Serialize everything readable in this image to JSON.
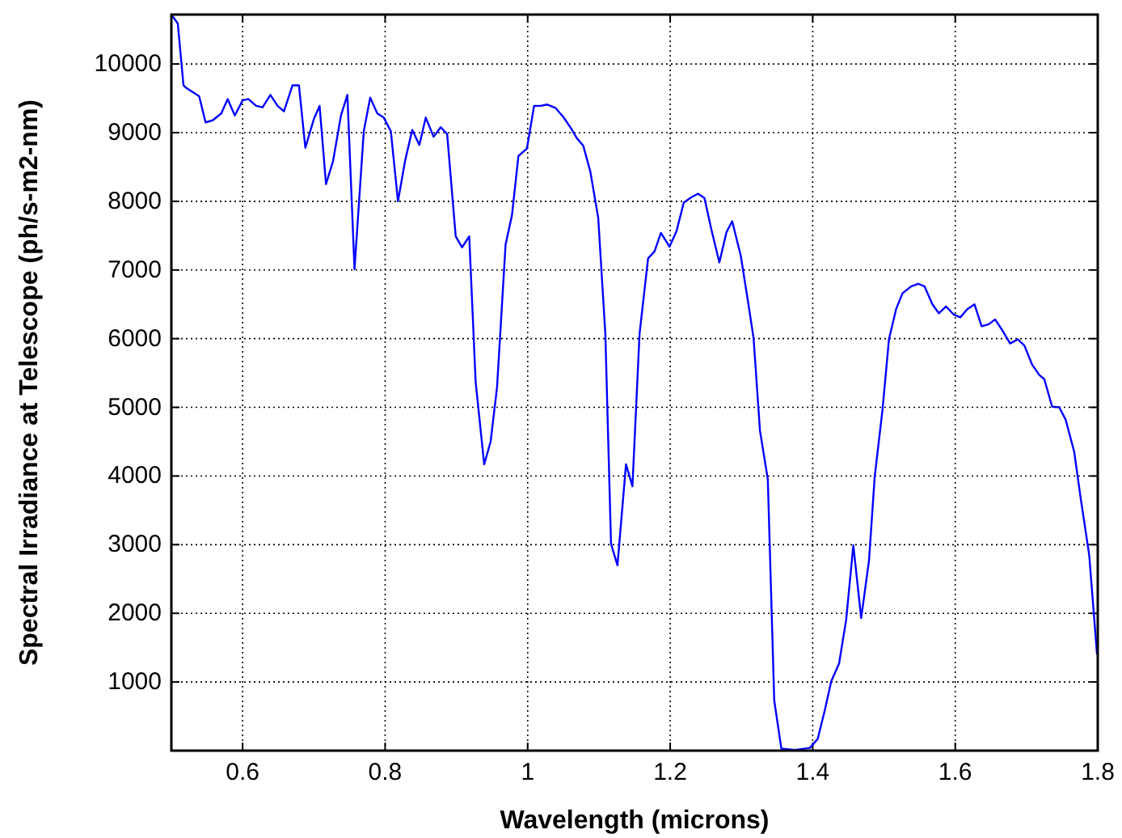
{
  "chart_data": {
    "type": "line",
    "xlabel": "Wavelength (microns)",
    "ylabel": "Spectral Irradiance at Telescope (ph/s-m2-nm)",
    "xlim": [
      0.5,
      1.8
    ],
    "ylim": [
      0,
      10720
    ],
    "xticks": [
      0.6,
      0.8,
      1,
      1.2,
      1.4,
      1.6,
      1.8
    ],
    "yticks": [
      1000,
      2000,
      3000,
      4000,
      5000,
      6000,
      7000,
      8000,
      9000,
      10000
    ],
    "grid": true,
    "line_style": "solid",
    "series": [
      {
        "color": "#0000ff",
        "x": [
          0.5,
          0.509,
          0.517,
          0.521,
          0.539,
          0.548,
          0.558,
          0.57,
          0.579,
          0.589,
          0.6,
          0.608,
          0.619,
          0.628,
          0.639,
          0.649,
          0.658,
          0.67,
          0.679,
          0.688,
          0.7,
          0.708,
          0.717,
          0.727,
          0.738,
          0.747,
          0.757,
          0.77,
          0.779,
          0.789,
          0.798,
          0.808,
          0.818,
          0.828,
          0.838,
          0.848,
          0.857,
          0.868,
          0.878,
          0.887,
          0.899,
          0.908,
          0.918,
          0.927,
          0.939,
          0.948,
          0.957,
          0.969,
          0.978,
          0.987,
          0.999,
          1.009,
          1.018,
          1.027,
          1.039,
          1.05,
          1.061,
          1.069,
          1.078,
          1.088,
          1.099,
          1.109,
          1.117,
          1.126,
          1.138,
          1.147,
          1.157,
          1.169,
          1.178,
          1.187,
          1.199,
          1.209,
          1.219,
          1.23,
          1.239,
          1.248,
          1.258,
          1.269,
          1.279,
          1.287,
          1.299,
          1.308,
          1.317,
          1.326,
          1.337,
          1.346,
          1.356,
          1.375,
          1.396,
          1.407,
          1.417,
          1.426,
          1.437,
          1.447,
          1.457,
          1.468,
          1.479,
          1.487,
          1.498,
          1.507,
          1.517,
          1.526,
          1.538,
          1.548,
          1.557,
          1.568,
          1.577,
          1.587,
          1.598,
          1.607,
          1.617,
          1.627,
          1.637,
          1.647,
          1.656,
          1.668,
          1.677,
          1.688,
          1.697,
          1.708,
          1.718,
          1.725,
          1.736,
          1.746,
          1.755,
          1.767,
          1.776,
          1.788,
          1.799
        ],
        "values": [
          10720,
          10590,
          9690,
          9650,
          9530,
          9150,
          9180,
          9280,
          9490,
          9250,
          9470,
          9490,
          9390,
          9370,
          9550,
          9390,
          9310,
          9690,
          9690,
          8780,
          9200,
          9390,
          8250,
          8590,
          9250,
          9550,
          7010,
          9020,
          9510,
          9280,
          9220,
          9020,
          8000,
          8590,
          9040,
          8820,
          9220,
          8940,
          9080,
          8980,
          7490,
          7330,
          7490,
          5370,
          4170,
          4500,
          5290,
          7370,
          7800,
          8660,
          8770,
          9390,
          9390,
          9410,
          9360,
          9230,
          9060,
          8920,
          8810,
          8430,
          7760,
          6070,
          3010,
          2700,
          4170,
          3850,
          6070,
          7170,
          7270,
          7540,
          7340,
          7570,
          7980,
          8060,
          8110,
          8050,
          7580,
          7110,
          7550,
          7710,
          7210,
          6620,
          6010,
          4660,
          3950,
          730,
          30,
          10,
          40,
          170,
          590,
          1010,
          1270,
          1910,
          2990,
          1930,
          2770,
          3990,
          4970,
          5990,
          6430,
          6660,
          6760,
          6800,
          6760,
          6500,
          6370,
          6470,
          6350,
          6310,
          6430,
          6500,
          6180,
          6210,
          6280,
          6090,
          5930,
          5990,
          5900,
          5620,
          5470,
          5410,
          5010,
          5000,
          4820,
          4350,
          3680,
          2850,
          1400
        ]
      }
    ]
  }
}
